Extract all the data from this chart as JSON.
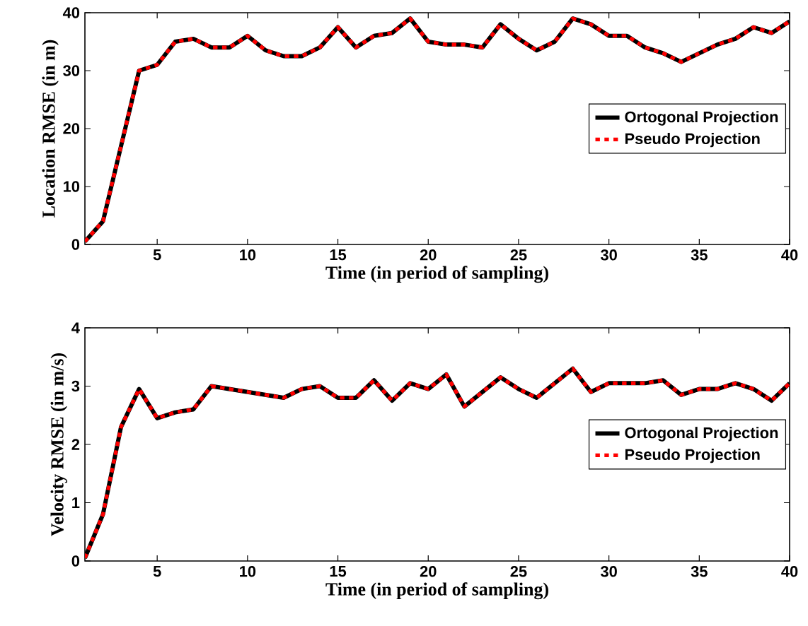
{
  "chart_data": [
    {
      "type": "line",
      "xlabel": "Time (in period of sampling)",
      "ylabel": "Location RMSE (in m)",
      "x": [
        1,
        2,
        3,
        4,
        5,
        6,
        7,
        8,
        9,
        10,
        11,
        12,
        13,
        14,
        15,
        16,
        17,
        18,
        19,
        20,
        21,
        22,
        23,
        24,
        25,
        26,
        27,
        28,
        29,
        30,
        31,
        32,
        33,
        34,
        35,
        36,
        37,
        38,
        39,
        40
      ],
      "xlim": [
        1,
        40
      ],
      "ylim": [
        0,
        40
      ],
      "xticks": [
        5,
        10,
        15,
        20,
        25,
        30,
        35,
        40
      ],
      "yticks": [
        0,
        10,
        20,
        30,
        40
      ],
      "legend": "right",
      "series": [
        {
          "name": "Ortogonal Projection",
          "color": "#000000",
          "line_style": "solid",
          "values": [
            0.5,
            4,
            17,
            30,
            31,
            35,
            35.5,
            34,
            34,
            36,
            33.5,
            32.5,
            32.5,
            34,
            37.5,
            34,
            36,
            36.5,
            39,
            35,
            34.5,
            34.5,
            34,
            38,
            35.5,
            33.5,
            35,
            39,
            38,
            36,
            36,
            34,
            33,
            31.5,
            33,
            34.5,
            35.5,
            37.5,
            36.5,
            38.5
          ]
        },
        {
          "name": "Pseudo Projection",
          "color": "#ff0000",
          "line_style": "dotted",
          "values": [
            0.5,
            4,
            17,
            30,
            31,
            35,
            35.5,
            34,
            34,
            36,
            33.5,
            32.5,
            32.5,
            34,
            37.5,
            34,
            36,
            36.5,
            39,
            35,
            34.5,
            34.5,
            34,
            38,
            35.5,
            33.5,
            35,
            39,
            38,
            36,
            36,
            34,
            33,
            31.5,
            33,
            34.5,
            35.5,
            37.5,
            36.5,
            38.5
          ]
        }
      ]
    },
    {
      "type": "line",
      "xlabel": "Time (in period of sampling)",
      "ylabel": "Velocity RMSE (in m/s)",
      "x": [
        1,
        2,
        3,
        4,
        5,
        6,
        7,
        8,
        9,
        10,
        11,
        12,
        13,
        14,
        15,
        16,
        17,
        18,
        19,
        20,
        21,
        22,
        23,
        24,
        25,
        26,
        27,
        28,
        29,
        30,
        31,
        32,
        33,
        34,
        35,
        36,
        37,
        38,
        39,
        40
      ],
      "xlim": [
        1,
        40
      ],
      "ylim": [
        0,
        4
      ],
      "xticks": [
        5,
        10,
        15,
        20,
        25,
        30,
        35,
        40
      ],
      "yticks": [
        0,
        1,
        2,
        3,
        4
      ],
      "legend": "right",
      "series": [
        {
          "name": "Ortogonal Projection",
          "color": "#000000",
          "line_style": "solid",
          "values": [
            0.05,
            0.8,
            2.3,
            2.95,
            2.45,
            2.55,
            2.6,
            3.0,
            2.95,
            2.9,
            2.85,
            2.8,
            2.95,
            3.0,
            2.8,
            2.8,
            3.1,
            2.75,
            3.05,
            2.95,
            3.2,
            2.65,
            2.9,
            3.15,
            2.95,
            2.8,
            3.05,
            3.3,
            2.9,
            3.05,
            3.05,
            3.05,
            3.1,
            2.85,
            2.95,
            2.95,
            3.05,
            2.95,
            2.75,
            3.05
          ]
        },
        {
          "name": "Pseudo Projection",
          "color": "#ff0000",
          "line_style": "dotted",
          "values": [
            0.05,
            0.8,
            2.3,
            2.95,
            2.45,
            2.55,
            2.6,
            3.0,
            2.95,
            2.9,
            2.85,
            2.8,
            2.95,
            3.0,
            2.8,
            2.8,
            3.1,
            2.75,
            3.05,
            2.95,
            3.2,
            2.65,
            2.9,
            3.15,
            2.95,
            2.8,
            3.05,
            3.3,
            2.9,
            3.05,
            3.05,
            3.05,
            3.1,
            2.85,
            2.95,
            2.95,
            3.05,
            2.95,
            2.75,
            3.05
          ]
        }
      ]
    }
  ]
}
